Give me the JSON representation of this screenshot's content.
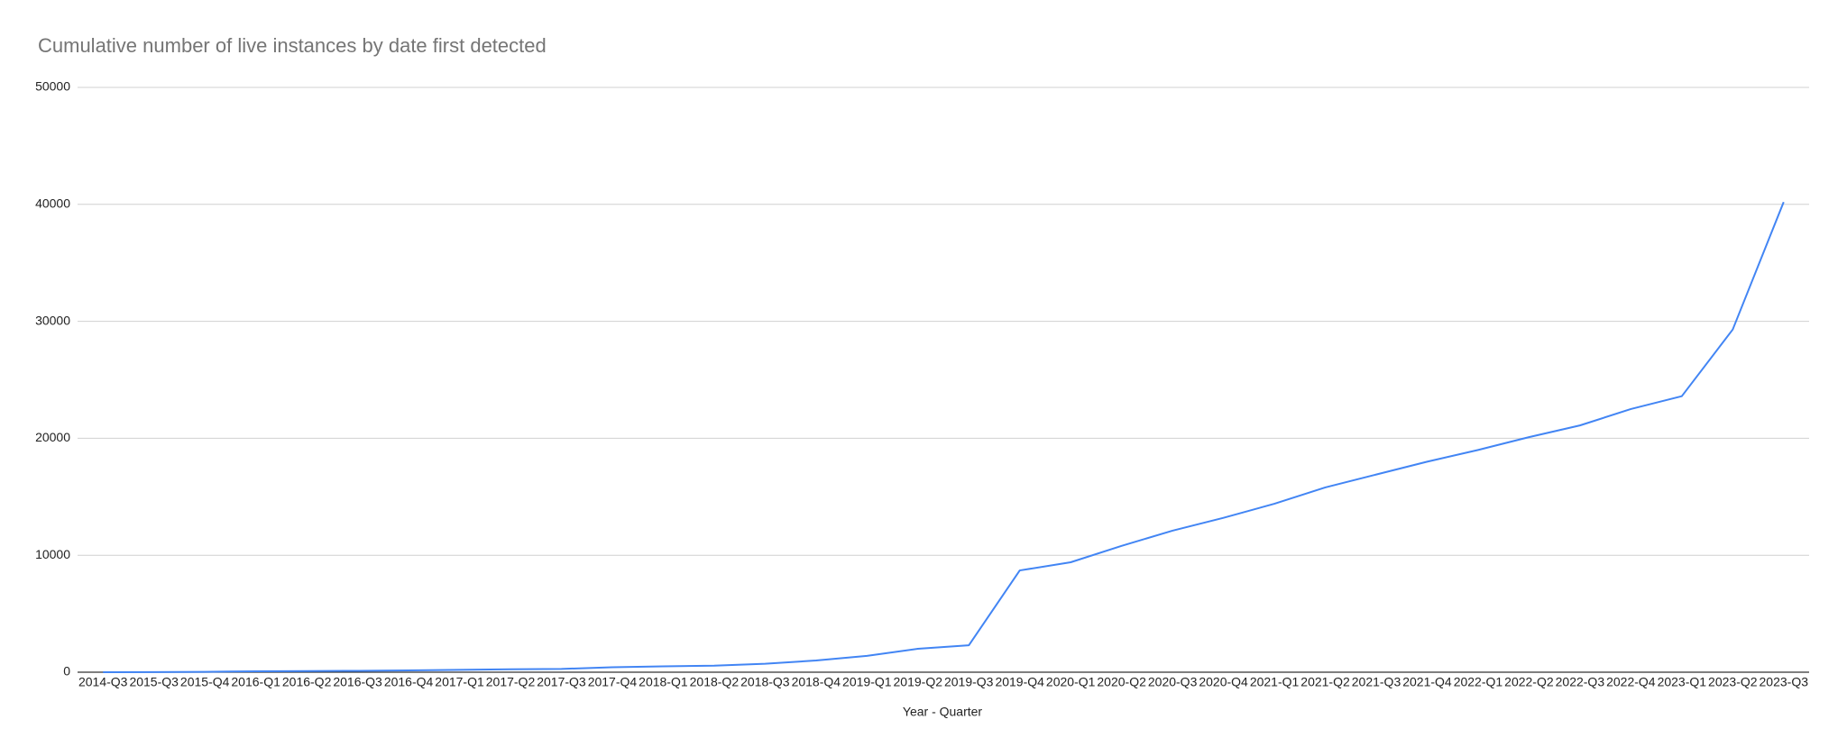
{
  "chart_data": {
    "type": "line",
    "title": "Cumulative number of live instances by date first detected",
    "x_label": "Year - Quarter",
    "categories": [
      "2014-Q3",
      "2015-Q3",
      "2015-Q4",
      "2016-Q1",
      "2016-Q2",
      "2016-Q3",
      "2016-Q4",
      "2017-Q1",
      "2017-Q2",
      "2017-Q3",
      "2017-Q4",
      "2018-Q1",
      "2018-Q2",
      "2018-Q3",
      "2018-Q4",
      "2019-Q1",
      "2019-Q2",
      "2019-Q3",
      "2019-Q4",
      "2020-Q1",
      "2020-Q2",
      "2020-Q3",
      "2020-Q4",
      "2021-Q1",
      "2021-Q2",
      "2021-Q3",
      "2021-Q4",
      "2022-Q1",
      "2022-Q2",
      "2022-Q3",
      "2022-Q4",
      "2023-Q1",
      "2023-Q2",
      "2023-Q3"
    ],
    "values": [
      0,
      10,
      30,
      80,
      100,
      120,
      150,
      200,
      250,
      280,
      420,
      500,
      560,
      720,
      1000,
      1400,
      2000,
      2300,
      8700,
      9400,
      10800,
      12100,
      13200,
      14400,
      15800,
      16900,
      18000,
      19000,
      20100,
      21100,
      22500,
      23600,
      29300,
      40200
    ],
    "color": "#4285f4",
    "ylim": [
      0,
      50000
    ],
    "yticks": [
      0,
      10000,
      20000,
      30000,
      40000,
      50000
    ],
    "grid": true
  }
}
